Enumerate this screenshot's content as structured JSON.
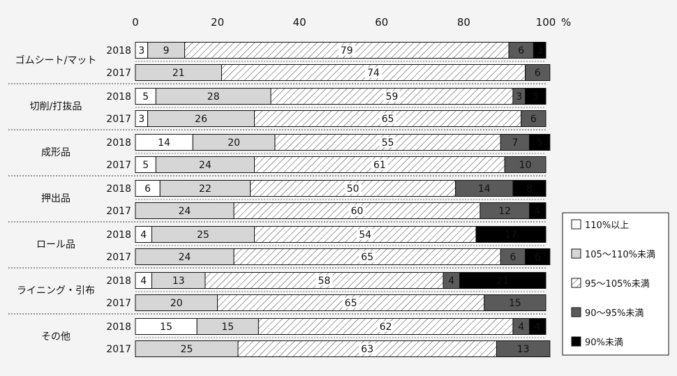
{
  "chart_data": {
    "type": "bar",
    "orientation": "horizontal",
    "stacked": true,
    "xlim": [
      0,
      100
    ],
    "x_ticks": [
      "0",
      "20",
      "40",
      "60",
      "80",
      "100"
    ],
    "x_unit": "%",
    "legend_position": "right",
    "grid": false,
    "series": [
      {
        "name": "110%以上",
        "fill": "white"
      },
      {
        "name": "105〜110%未満",
        "fill": "light-gray"
      },
      {
        "name": "95〜105%未満",
        "fill": "diagonal-hatch"
      },
      {
        "name": "90〜95%未満",
        "fill": "dark-gray"
      },
      {
        "name": "90%未満",
        "fill": "black"
      }
    ],
    "colors": {
      "white": "#ffffff",
      "light_gray": "#d6d6d6",
      "dark_gray": "#5a5a5a",
      "black": "#000000"
    },
    "groups": [
      {
        "name": "ゴムシート/マット",
        "rows": [
          {
            "year": "2018",
            "values": [
              3,
              9,
              79,
              6,
              3
            ]
          },
          {
            "year": "2017",
            "values": [
              0,
              21,
              74,
              6,
              0
            ]
          }
        ]
      },
      {
        "name": "切削/打抜品",
        "rows": [
          {
            "year": "2018",
            "values": [
              5,
              28,
              59,
              3,
              5
            ]
          },
          {
            "year": "2017",
            "values": [
              3,
              26,
              65,
              6,
              0
            ]
          }
        ]
      },
      {
        "name": "成形品",
        "rows": [
          {
            "year": "2018",
            "values": [
              14,
              20,
              55,
              7,
              5
            ]
          },
          {
            "year": "2017",
            "values": [
              5,
              24,
              61,
              10,
              0
            ]
          }
        ]
      },
      {
        "name": "押出品",
        "rows": [
          {
            "year": "2018",
            "values": [
              6,
              22,
              50,
              14,
              8
            ]
          },
          {
            "year": "2017",
            "values": [
              0,
              24,
              60,
              12,
              4
            ]
          }
        ]
      },
      {
        "name": "ロール品",
        "rows": [
          {
            "year": "2018",
            "values": [
              4,
              25,
              54,
              0,
              17
            ]
          },
          {
            "year": "2017",
            "values": [
              0,
              24,
              65,
              6,
              6
            ]
          }
        ]
      },
      {
        "name": "ライニング・引布",
        "rows": [
          {
            "year": "2018",
            "values": [
              4,
              13,
              58,
              4,
              21
            ]
          },
          {
            "year": "2017",
            "values": [
              0,
              20,
              65,
              15,
              0
            ]
          }
        ]
      },
      {
        "name": "その他",
        "rows": [
          {
            "year": "2018",
            "values": [
              15,
              15,
              62,
              4,
              4
            ]
          },
          {
            "year": "2017",
            "values": [
              0,
              25,
              63,
              13,
              0
            ]
          }
        ]
      }
    ]
  }
}
